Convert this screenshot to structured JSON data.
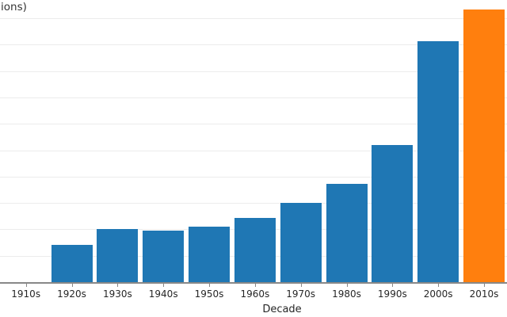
{
  "chart": {
    "title_visible": "ions)",
    "xlabel": "Decade"
  },
  "chart_data": {
    "type": "bar",
    "title": "ions)",
    "xlabel": "Decade",
    "ylabel": "",
    "categories": [
      "1910s",
      "1920s",
      "1930s",
      "1940s",
      "1950s",
      "1960s",
      "1970s",
      "1980s",
      "1990s",
      "2000s",
      "2010s"
    ],
    "values": [
      0,
      1.42,
      2.0,
      1.95,
      2.1,
      2.43,
      3.0,
      3.72,
      5.2,
      9.12,
      10.33
    ],
    "value_units": "gridline intervals (y-axis tick labels not visible in crop)",
    "ylim": [
      0,
      10.4
    ],
    "grid": "horizontal gridlines every 1 unit, 10 lines visible",
    "legend_position": "none",
    "colors": {
      "bar_default": "#1f77b4",
      "bar_highlight": "#ff7f0e",
      "gridline": "#ececec",
      "axis_line": "#888888",
      "text": "#262626"
    },
    "highlight_category": "2010s"
  }
}
